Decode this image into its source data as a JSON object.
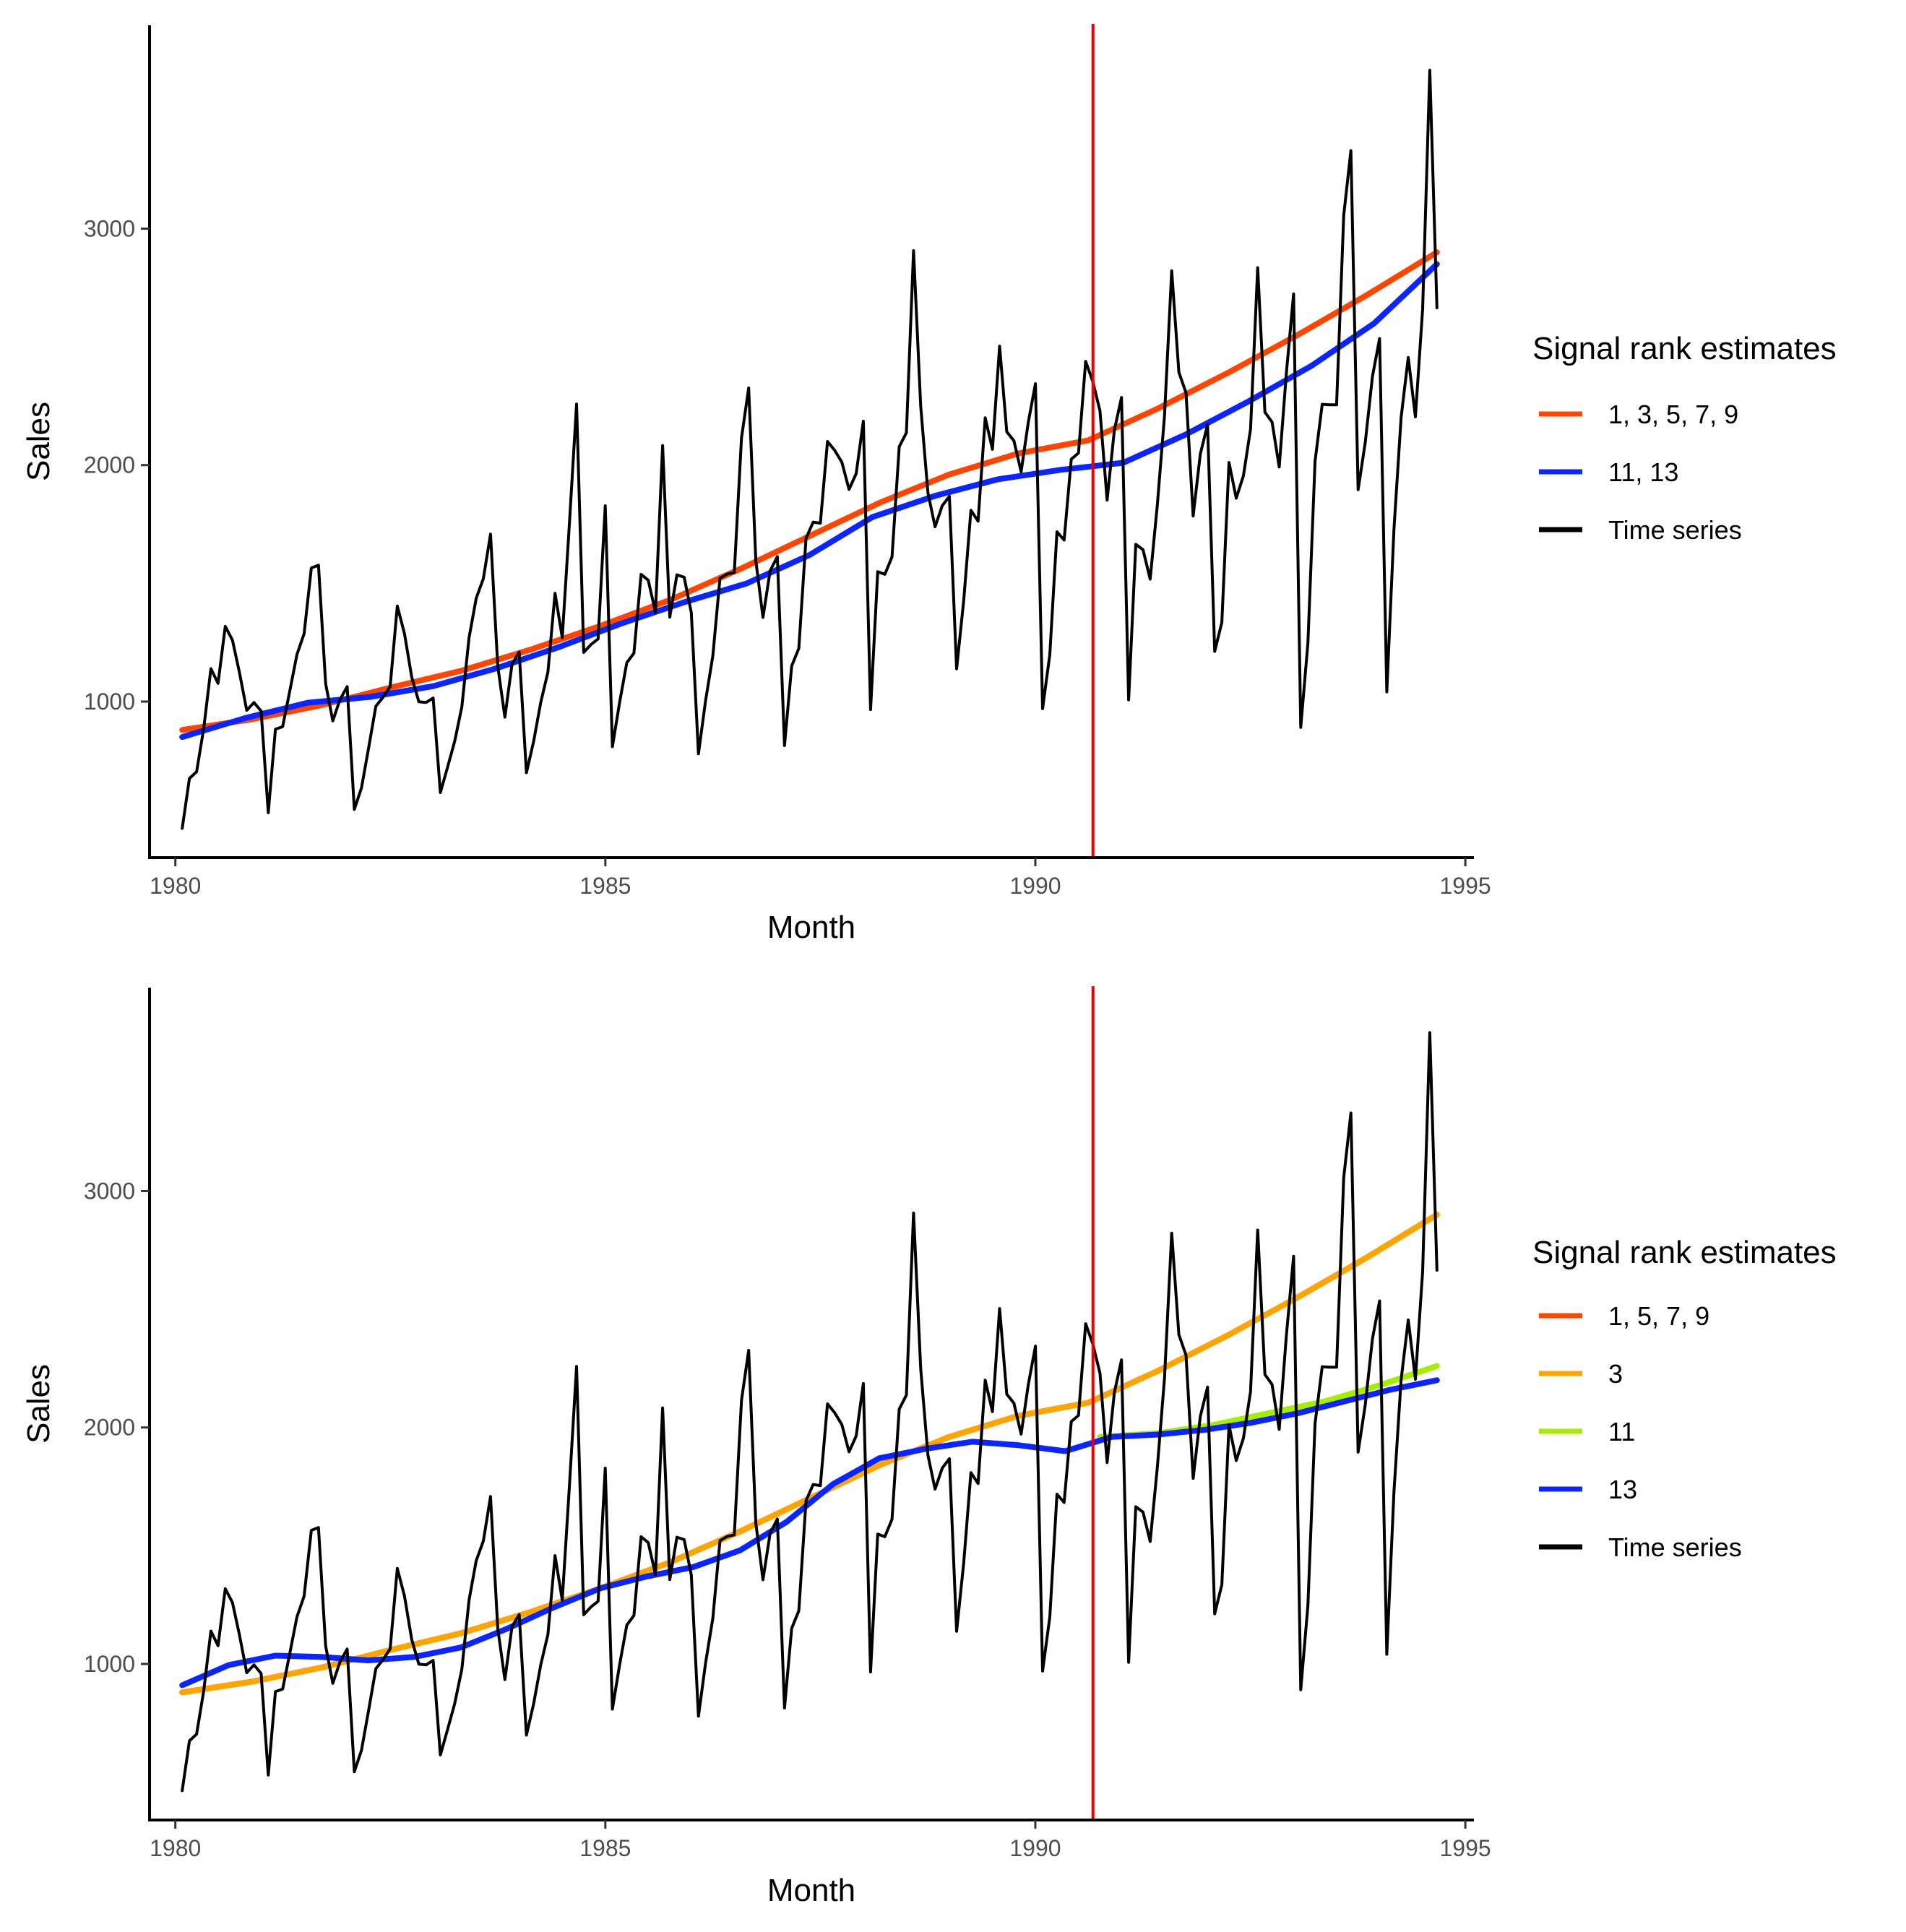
{
  "chart_data": [
    {
      "type": "line",
      "xlabel": "Month",
      "ylabel": "Sales",
      "xlim": [
        1979.7,
        1995.1
      ],
      "ylim": [
        340,
        3860
      ],
      "x_ticks": [
        1980,
        1985,
        1990,
        1995
      ],
      "y_ticks": [
        1000,
        2000,
        3000
      ],
      "vline_x": 1990.67,
      "vline_color": "#ee0000",
      "legend": {
        "title": "Signal rank estimates",
        "position": "right"
      },
      "series": [
        {
          "name": "1, 3, 5, 7, 9",
          "color": "#ff4500",
          "width": 8,
          "x_start": 1980.08,
          "x_end": 1994.67,
          "values": [
            880,
            925,
            985,
            1060,
            1130,
            1220,
            1320,
            1430,
            1560,
            1700,
            1840,
            1960,
            2050,
            2105,
            2240,
            2390,
            2550,
            2720,
            2900
          ]
        },
        {
          "name": "11, 13",
          "color": "#0a25ff",
          "width": 8,
          "x_start": 1980.08,
          "x_end": 1994.67,
          "values": [
            850,
            930,
            995,
            1020,
            1065,
            1140,
            1230,
            1330,
            1420,
            1500,
            1620,
            1780,
            1870,
            1940,
            1980,
            2010,
            2130,
            2270,
            2420,
            2600,
            2850
          ]
        },
        {
          "name": "Time series",
          "color": "#000000",
          "width": 4,
          "x_start": 1980.08,
          "x_end": 1994.67,
          "values": [
            464,
            675,
            703,
            887,
            1139,
            1077,
            1318,
            1260,
            1120,
            963,
            996,
            960,
            530,
            883,
            894,
            1045,
            1199,
            1287,
            1565,
            1577,
            1076,
            918,
            1008,
            1063,
            544,
            635,
            804,
            980,
            1018,
            1064,
            1404,
            1286,
            1104,
            999,
            996,
            1015,
            615,
            722,
            832,
            977,
            1270,
            1437,
            1520,
            1708,
            1151,
            934,
            1159,
            1209,
            699,
            830,
            996,
            1124,
            1458,
            1270,
            1753,
            2258,
            1208,
            1241,
            1265,
            1828,
            809,
            997,
            1164,
            1205,
            1538,
            1513,
            1378,
            2083,
            1357,
            1536,
            1526,
            1376,
            779,
            1005,
            1193,
            1522,
            1539,
            1546,
            2116,
            2326,
            1596,
            1356,
            1553,
            1613,
            814,
            1150,
            1225,
            1691,
            1759,
            1754,
            2100,
            2062,
            2012,
            1897,
            1964,
            2186,
            966,
            1549,
            1538,
            1612,
            2078,
            2137,
            2907,
            2249,
            1883,
            1739,
            1828,
            1868,
            1138,
            1430,
            1809,
            1763,
            2200,
            2067,
            2503,
            2141,
            2103,
            1972,
            2181,
            2344,
            970,
            1199,
            1718,
            1683,
            2025,
            2051,
            2439,
            2353,
            2230,
            1852,
            2147,
            2286,
            1007,
            1665,
            1642,
            1518,
            1831,
            2207,
            2822,
            2393,
            2306,
            1785,
            2047,
            2171,
            1212,
            1335,
            2011,
            1860,
            1954,
            2152,
            2835,
            2224,
            2182,
            1992,
            2389,
            2724,
            891,
            1247,
            2017,
            2257,
            2255,
            2255,
            3057,
            3330,
            1896,
            2096,
            2374,
            2535,
            1041,
            1728,
            2201,
            2455,
            2204,
            2660,
            3670,
            2665
          ]
        }
      ]
    },
    {
      "type": "line",
      "xlabel": "Month",
      "ylabel": "Sales",
      "xlim": [
        1979.7,
        1995.1
      ],
      "ylim": [
        340,
        3860
      ],
      "x_ticks": [
        1980,
        1985,
        1990,
        1995
      ],
      "y_ticks": [
        1000,
        2000,
        3000
      ],
      "vline_x": 1990.67,
      "vline_color": "#ee0000",
      "legend": {
        "title": "Signal rank estimates",
        "position": "right"
      },
      "series": [
        {
          "name": "1, 5, 7, 9",
          "color": "#ff4500",
          "width": 8,
          "x_start": 1980.08,
          "x_end": 1994.67,
          "values": [
            880,
            925,
            985,
            1060,
            1130,
            1220,
            1320,
            1430,
            1560,
            1700,
            1840,
            1960,
            2050,
            2105,
            2240,
            2390,
            2550,
            2720,
            2900
          ]
        },
        {
          "name": "3",
          "color": "#ffa500",
          "width": 8,
          "x_start": 1980.08,
          "x_end": 1994.67,
          "values": [
            880,
            925,
            985,
            1060,
            1130,
            1220,
            1320,
            1430,
            1560,
            1700,
            1840,
            1960,
            2050,
            2105,
            2240,
            2390,
            2550,
            2720,
            2900
          ]
        },
        {
          "name": "11",
          "color": "#a6ee00",
          "width": 8,
          "x_start": 1990.75,
          "x_end": 1994.67,
          "values": [
            1960,
            1975,
            2010,
            2060,
            2110,
            2180,
            2260
          ]
        },
        {
          "name": "13",
          "color": "#0a25ff",
          "width": 8,
          "x_start": 1980.08,
          "x_end": 1994.67,
          "values": [
            910,
            995,
            1035,
            1030,
            1015,
            1030,
            1070,
            1150,
            1240,
            1320,
            1370,
            1410,
            1480,
            1600,
            1760,
            1870,
            1910,
            1940,
            1925,
            1900,
            1960,
            1970,
            1990,
            2020,
            2060,
            2110,
            2160,
            2200
          ]
        },
        {
          "name": "Time series",
          "color": "#000000",
          "width": 4,
          "x_start": 1980.08,
          "x_end": 1994.67,
          "values": [
            464,
            675,
            703,
            887,
            1139,
            1077,
            1318,
            1260,
            1120,
            963,
            996,
            960,
            530,
            883,
            894,
            1045,
            1199,
            1287,
            1565,
            1577,
            1076,
            918,
            1008,
            1063,
            544,
            635,
            804,
            980,
            1018,
            1064,
            1404,
            1286,
            1104,
            999,
            996,
            1015,
            615,
            722,
            832,
            977,
            1270,
            1437,
            1520,
            1708,
            1151,
            934,
            1159,
            1209,
            699,
            830,
            996,
            1124,
            1458,
            1270,
            1753,
            2258,
            1208,
            1241,
            1265,
            1828,
            809,
            997,
            1164,
            1205,
            1538,
            1513,
            1378,
            2083,
            1357,
            1536,
            1526,
            1376,
            779,
            1005,
            1193,
            1522,
            1539,
            1546,
            2116,
            2326,
            1596,
            1356,
            1553,
            1613,
            814,
            1150,
            1225,
            1691,
            1759,
            1754,
            2100,
            2062,
            2012,
            1897,
            1964,
            2186,
            966,
            1549,
            1538,
            1612,
            2078,
            2137,
            2907,
            2249,
            1883,
            1739,
            1828,
            1868,
            1138,
            1430,
            1809,
            1763,
            2200,
            2067,
            2503,
            2141,
            2103,
            1972,
            2181,
            2344,
            970,
            1199,
            1718,
            1683,
            2025,
            2051,
            2439,
            2353,
            2230,
            1852,
            2147,
            2286,
            1007,
            1665,
            1642,
            1518,
            1831,
            2207,
            2822,
            2393,
            2306,
            1785,
            2047,
            2171,
            1212,
            1335,
            2011,
            1860,
            1954,
            2152,
            2835,
            2224,
            2182,
            1992,
            2389,
            2724,
            891,
            1247,
            2017,
            2257,
            2255,
            2255,
            3057,
            3330,
            1896,
            2096,
            2374,
            2535,
            1041,
            1728,
            2201,
            2455,
            2204,
            2660,
            3670,
            2665
          ]
        }
      ]
    }
  ]
}
